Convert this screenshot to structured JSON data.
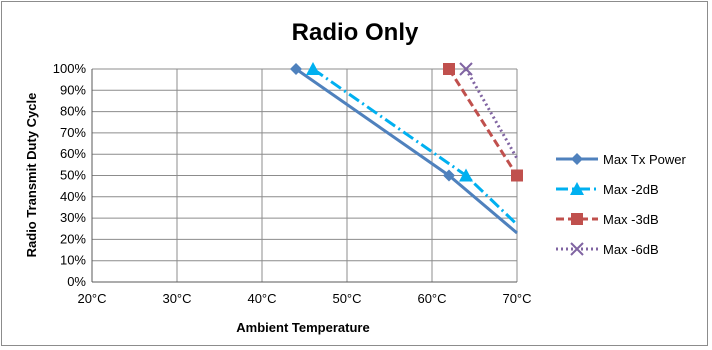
{
  "chart_data": {
    "type": "line",
    "title": "Radio Only",
    "xlabel": "Ambient Temperature",
    "ylabel": "Radio Transmit Duty Cycle",
    "xlim": [
      20,
      70
    ],
    "ylim": [
      0,
      100
    ],
    "x_ticks": [
      "20°C",
      "30°C",
      "40°C",
      "50°C",
      "60°C",
      "70°C"
    ],
    "y_ticks": [
      "0%",
      "10%",
      "20%",
      "30%",
      "40%",
      "50%",
      "60%",
      "70%",
      "80%",
      "90%",
      "100%"
    ],
    "grid": true,
    "legend_position": "right",
    "series": [
      {
        "name": "Max Tx Power",
        "color": "#4f81bd",
        "dash": "solid",
        "marker": "diamond",
        "x": [
          44,
          62,
          70
        ],
        "y": [
          100,
          50,
          23
        ],
        "marker_indices": [
          0,
          1
        ]
      },
      {
        "name": "Max -2dB",
        "color": "#00b0f0",
        "dash": "dashdot",
        "marker": "triangle",
        "x": [
          46,
          64,
          70
        ],
        "y": [
          100,
          50,
          27
        ],
        "marker_indices": [
          0,
          1
        ]
      },
      {
        "name": "Max -3dB",
        "color": "#c0504d",
        "dash": "dash",
        "marker": "square",
        "x": [
          62,
          70
        ],
        "y": [
          100,
          50
        ],
        "marker_indices": [
          0,
          1
        ]
      },
      {
        "name": "Max -6dB",
        "color": "#8064a2",
        "dash": "dot",
        "marker": "x",
        "x": [
          64,
          70
        ],
        "y": [
          100,
          58
        ],
        "marker_indices": [
          0
        ]
      }
    ]
  }
}
